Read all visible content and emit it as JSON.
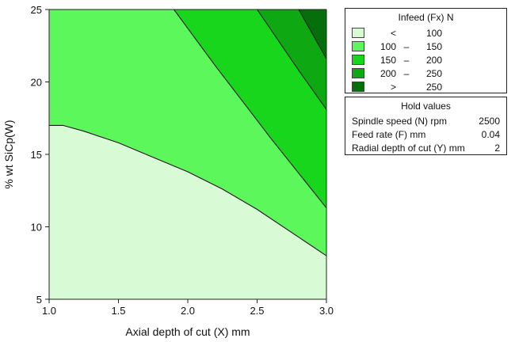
{
  "chart_data": {
    "type": "contour",
    "xlabel": "Axial depth of cut (X) mm",
    "ylabel": "% wt SiCp(W)",
    "xlim": [
      1.0,
      3.0
    ],
    "ylim": [
      5,
      25
    ],
    "x_ticks": [
      "1.0",
      "1.5",
      "2.0",
      "2.5",
      "3.0"
    ],
    "y_ticks": [
      "5",
      "10",
      "15",
      "20",
      "25"
    ],
    "x_tick_values": [
      1.0,
      1.5,
      2.0,
      2.5,
      3.0
    ],
    "y_tick_values": [
      5,
      10,
      15,
      20,
      25
    ],
    "contours": [
      {
        "level": 100,
        "points": [
          [
            1.0,
            17.0
          ],
          [
            1.1,
            17.0
          ],
          [
            1.25,
            16.6
          ],
          [
            1.5,
            15.8
          ],
          [
            1.75,
            14.8
          ],
          [
            2.0,
            13.8
          ],
          [
            2.25,
            12.6
          ],
          [
            2.5,
            11.2
          ],
          [
            2.75,
            9.6
          ],
          [
            3.0,
            8.0
          ]
        ]
      },
      {
        "level": 150,
        "points": [
          [
            1.9,
            25.0
          ],
          [
            2.0,
            23.7
          ],
          [
            2.2,
            21.1
          ],
          [
            2.4,
            18.6
          ],
          [
            2.6,
            16.1
          ],
          [
            2.8,
            13.7
          ],
          [
            3.0,
            11.3
          ]
        ]
      },
      {
        "level": 200,
        "points": [
          [
            2.5,
            25.0
          ],
          [
            2.6,
            23.6
          ],
          [
            2.8,
            20.8
          ],
          [
            3.0,
            18.1
          ]
        ]
      },
      {
        "level": 250,
        "points": [
          [
            2.8,
            25.0
          ],
          [
            2.9,
            23.3
          ],
          [
            3.0,
            21.6
          ]
        ]
      }
    ],
    "legend": {
      "title": "Infeed (Fx) N",
      "placement": "right",
      "entries": [
        {
          "low": "<",
          "high": "100",
          "color": "#d8fbd6"
        },
        {
          "low": "100",
          "high": "150",
          "color": "#5cf75a"
        },
        {
          "low": "150",
          "high": "200",
          "color": "#18d61b"
        },
        {
          "low": "200",
          "high": "250",
          "color": "#0ea813"
        },
        {
          "low": ">",
          "high": "250",
          "color": "#066e0a"
        }
      ]
    },
    "hold_values": {
      "title": "Hold values",
      "rows": [
        {
          "label": "Spindle speed (N) rpm",
          "value": "2500"
        },
        {
          "label": "Feed rate (F) mm",
          "value": "0.04"
        },
        {
          "label": "Radial depth of cut (Y) mm",
          "value": "2"
        }
      ]
    }
  }
}
